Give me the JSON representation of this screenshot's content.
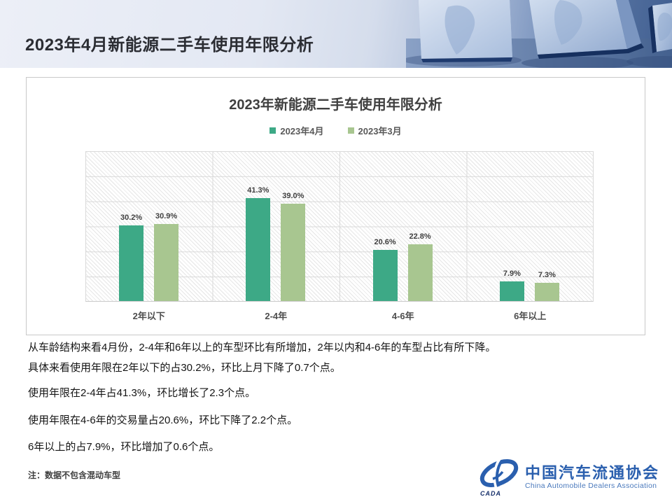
{
  "header": {
    "title": "2023年4月新能源二手车使用年限分析"
  },
  "chart": {
    "title": "2023年新能源二手车使用年限分析",
    "legend": [
      {
        "label": "2023年4月",
        "color": "#3da986"
      },
      {
        "label": "2023年3月",
        "color": "#a8c690"
      }
    ]
  },
  "chart_data": {
    "type": "bar",
    "title": "2023年新能源二手车使用年限分析",
    "categories": [
      "2年以下",
      "2-4年",
      "4-6年",
      "6年以上"
    ],
    "series": [
      {
        "name": "2023年4月",
        "color": "#3da986",
        "values": [
          30.2,
          41.3,
          20.6,
          7.9
        ],
        "labels": [
          "30.2%",
          "41.3%",
          "20.6%",
          "7.9%"
        ]
      },
      {
        "name": "2023年3月",
        "color": "#a8c690",
        "values": [
          30.9,
          39.0,
          22.8,
          7.3
        ],
        "labels": [
          "30.9%",
          "39.0%",
          "22.8%",
          "7.3%"
        ]
      }
    ],
    "xlabel": "",
    "ylabel": "",
    "ylim": [
      0,
      60
    ],
    "gridline_interval": 10,
    "grid": true,
    "legend_position": "top",
    "value_suffix": "%"
  },
  "analysis": {
    "paragraphs": [
      "从车龄结构来看4月份，2-4年和6年以上的车型环比有所增加，2年以内和4-6年的车型占比有所下降。",
      "具体来看使用年限在2年以下的占30.2%，环比上月下降了0.7个点。",
      "使用年限在2-4年占41.3%，环比增长了2.3个点。",
      "使用年限在4-6年的交易量占20.6%，环比下降了2.2个点。",
      "6年以上的占7.9%，环比增加了0.6个点。"
    ],
    "note": "注：数据不包含混动车型"
  },
  "footer_logo": {
    "org_cn": "中国汽车流通协会",
    "org_en": "China Automobile Dealers Association",
    "emblem_text": "CADA",
    "brand_color": "#2a5fae"
  }
}
